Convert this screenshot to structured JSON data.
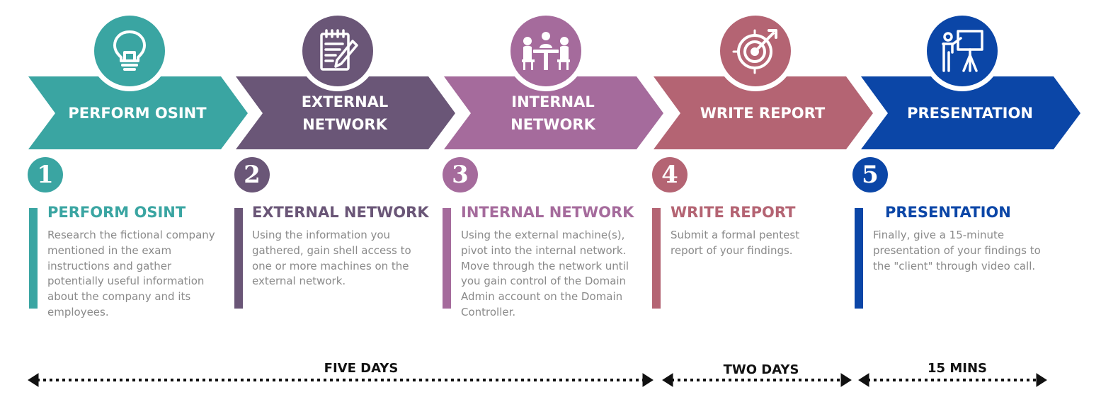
{
  "colors": {
    "teal": "#3aa5a2",
    "purple": "#6a5677",
    "mauve": "#a56b9c",
    "rose": "#b46473",
    "blue": "#0b46a7",
    "text_gray": "#8a8a8a"
  },
  "steps": [
    {
      "number": "1",
      "chevron_label": "PERFORM OSINT",
      "icon": "lightbulb-icon",
      "title": "PERFORM OSINT",
      "description": "Research the fictional company mentioned in the exam instructions and gather potentially useful information about the company and its employees."
    },
    {
      "number": "2",
      "chevron_label": "EXTERNAL NETWORK",
      "icon": "notepad-pencil-icon",
      "title": "EXTERNAL NETWORK",
      "description": "Using the information you gathered, gain shell access to one or more machines on the external network."
    },
    {
      "number": "3",
      "chevron_label": "INTERNAL NETWORK",
      "icon": "meeting-people-icon",
      "title": "INTERNAL NETWORK",
      "description": "Using the external machine(s), pivot into the internal network. Move through the network until you gain control of the Domain Admin account on the Domain Controller."
    },
    {
      "number": "4",
      "chevron_label": "WRITE REPORT",
      "icon": "target-arrow-icon",
      "title": "WRITE REPORT",
      "description": "Submit a formal pentest report of your findings."
    },
    {
      "number": "5",
      "chevron_label": "PRESENTATION",
      "icon": "presenter-board-icon",
      "title": "PRESENTATION",
      "description": "Finally, give a 15-minute presentation of your findings to the \"client\" through video call."
    }
  ],
  "durations": [
    {
      "label": "FIVE DAYS"
    },
    {
      "label": "TWO DAYS"
    },
    {
      "label": "15 MINS"
    }
  ]
}
